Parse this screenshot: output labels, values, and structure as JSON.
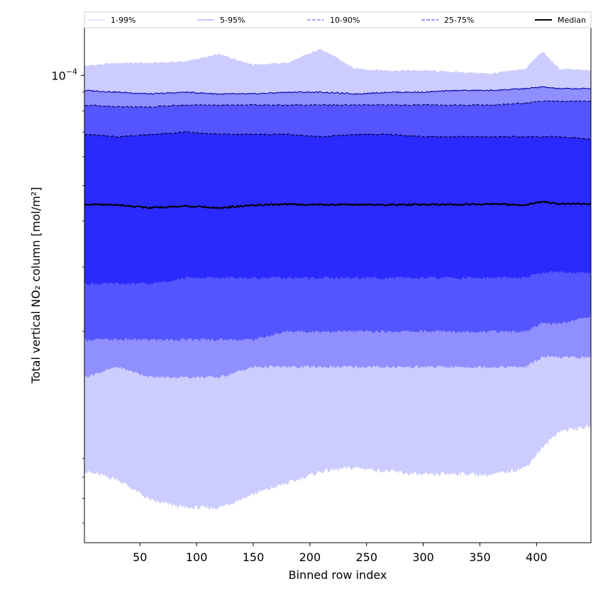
{
  "chart_data": {
    "type": "area",
    "xlabel": "Binned row index",
    "ylabel": "Total vertical NO₂ column [mol/m²]",
    "y_scale": "log",
    "xlim": [
      1,
      448
    ],
    "ylim": [
      5.3e-06,
      0.000135
    ],
    "x_ticks": [
      50,
      100,
      150,
      200,
      250,
      300,
      350,
      400
    ],
    "y_major_ticks": [
      {
        "value": 0.0001,
        "base": "10",
        "exponent": "−4"
      }
    ],
    "y_minor_ticks": [
      6e-06,
      7e-06,
      8e-06,
      9e-06,
      2e-05,
      3e-05,
      4e-05,
      5e-05,
      6e-05,
      7e-05,
      8e-05,
      9e-05
    ],
    "legend_position": "top",
    "x": [
      1,
      30,
      60,
      90,
      120,
      150,
      180,
      210,
      240,
      270,
      300,
      330,
      360,
      390,
      405,
      420,
      448
    ],
    "bands": [
      {
        "name": "1-99%",
        "color": "#ccccff",
        "line_color": "#ccccff",
        "line_style": "solid",
        "upper": [
          0.000106,
          0.000108,
          0.000108,
          0.000109,
          0.000114,
          0.000107,
          0.000108,
          0.000118,
          0.000104,
          0.000103,
          0.000103,
          0.000102,
          0.000101,
          0.000104,
          0.000116,
          0.000104,
          0.000103
        ],
        "lower": [
          8.3e-06,
          7.9e-06,
          6.9e-06,
          6.6e-06,
          6.6e-06,
          7.2e-06,
          7.7e-06,
          8.3e-06,
          8.5e-06,
          8.3e-06,
          8.1e-06,
          8.2e-06,
          8.1e-06,
          8.5e-06,
          9.6e-06,
          1.07e-05,
          1.1e-05
        ]
      },
      {
        "name": "5-95%",
        "color": "#8f8fff",
        "line_color": "#0000aa",
        "line_style": "solid",
        "upper": [
          9.1e-05,
          9e-05,
          8.9e-05,
          9e-05,
          8.9e-05,
          8.9e-05,
          9e-05,
          9e-05,
          8.9e-05,
          9e-05,
          9e-05,
          9.1e-05,
          9.1e-05,
          9.2e-05,
          9.3e-05,
          9.2e-05,
          9.2e-05
        ],
        "lower": [
          1.5e-05,
          1.6e-05,
          1.5e-05,
          1.5e-05,
          1.5e-05,
          1.6e-05,
          1.6e-05,
          1.6e-05,
          1.6e-05,
          1.6e-05,
          1.6e-05,
          1.6e-05,
          1.6e-05,
          1.6e-05,
          1.7e-05,
          1.7e-05,
          1.7e-05
        ]
      },
      {
        "name": "10-90%",
        "color": "#5555ff",
        "line_color": "#000060",
        "line_style": "dashed",
        "upper": [
          8.3e-05,
          8.2e-05,
          8.2e-05,
          8.3e-05,
          8.3e-05,
          8.3e-05,
          8.3e-05,
          8.3e-05,
          8.3e-05,
          8.3e-05,
          8.3e-05,
          8.3e-05,
          8.3e-05,
          8.4e-05,
          8.5e-05,
          8.5e-05,
          8.5e-05
        ],
        "lower": [
          1.9e-05,
          1.9e-05,
          1.9e-05,
          1.9e-05,
          1.9e-05,
          1.9e-05,
          2e-05,
          2e-05,
          2e-05,
          2e-05,
          2e-05,
          2e-05,
          2e-05,
          2e-05,
          2.1e-05,
          2.1e-05,
          2.2e-05
        ]
      },
      {
        "name": "25-75%",
        "color": "#2a2aff",
        "line_color": "#000030",
        "line_style": "dashed",
        "upper": [
          6.9e-05,
          6.8e-05,
          6.9e-05,
          7e-05,
          6.9e-05,
          6.9e-05,
          6.9e-05,
          6.8e-05,
          6.9e-05,
          6.9e-05,
          6.8e-05,
          6.8e-05,
          6.8e-05,
          6.8e-05,
          6.8e-05,
          6.8e-05,
          6.7e-05
        ],
        "lower": [
          2.7e-05,
          2.7e-05,
          2.7e-05,
          2.8e-05,
          2.8e-05,
          2.8e-05,
          2.8e-05,
          2.8e-05,
          2.8e-05,
          2.8e-05,
          2.8e-05,
          2.8e-05,
          2.8e-05,
          2.8e-05,
          2.9e-05,
          2.9e-05,
          2.9e-05
        ]
      }
    ],
    "median": {
      "name": "Median",
      "color": "#000000",
      "values": [
        4.45e-05,
        4.43e-05,
        4.35e-05,
        4.4e-05,
        4.35e-05,
        4.42e-05,
        4.45e-05,
        4.44e-05,
        4.44e-05,
        4.43e-05,
        4.44e-05,
        4.44e-05,
        4.46e-05,
        4.42e-05,
        4.52e-05,
        4.46e-05,
        4.46e-05
      ]
    }
  }
}
